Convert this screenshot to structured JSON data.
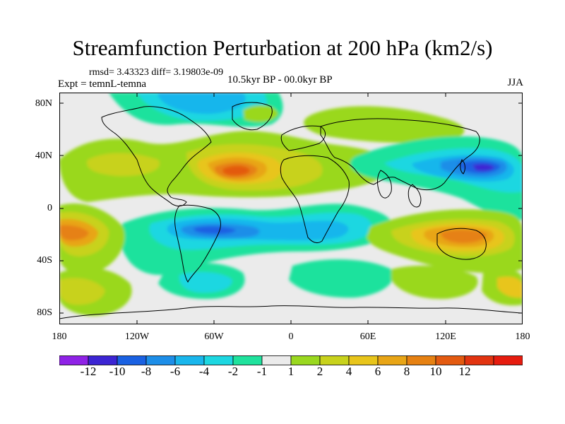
{
  "title": "Streamfunction Perturbation at 200 hPa (km2/s)",
  "stats_text": "rmsd= 3.43323  diff= 3.19803e-09",
  "experiment_text": "Expt = temnL-temna",
  "period_text": "10.5kyr BP - 00.0kyr BP",
  "season_text": "JJA",
  "lat_labels": [
    "80N",
    "40N",
    "0",
    "40S",
    "80S"
  ],
  "lon_labels": [
    "180",
    "120W",
    "60W",
    "0",
    "60E",
    "120E",
    "180"
  ],
  "colorbar": {
    "colors": [
      "#8f22e6",
      "#3c25d3",
      "#1a61e2",
      "#1d8ee8",
      "#19b6ec",
      "#1dd7e1",
      "#1fe29d",
      "#ebebeb",
      "#9ad81f",
      "#c8d21c",
      "#e8c51b",
      "#e8a516",
      "#e68112",
      "#e35a10",
      "#e23410",
      "#e61c0f"
    ],
    "labels": [
      "-12",
      "-10",
      "-8",
      "-6",
      "-4",
      "-2",
      "-1",
      "1",
      "2",
      "4",
      "6",
      "8",
      "10",
      "12"
    ]
  }
}
